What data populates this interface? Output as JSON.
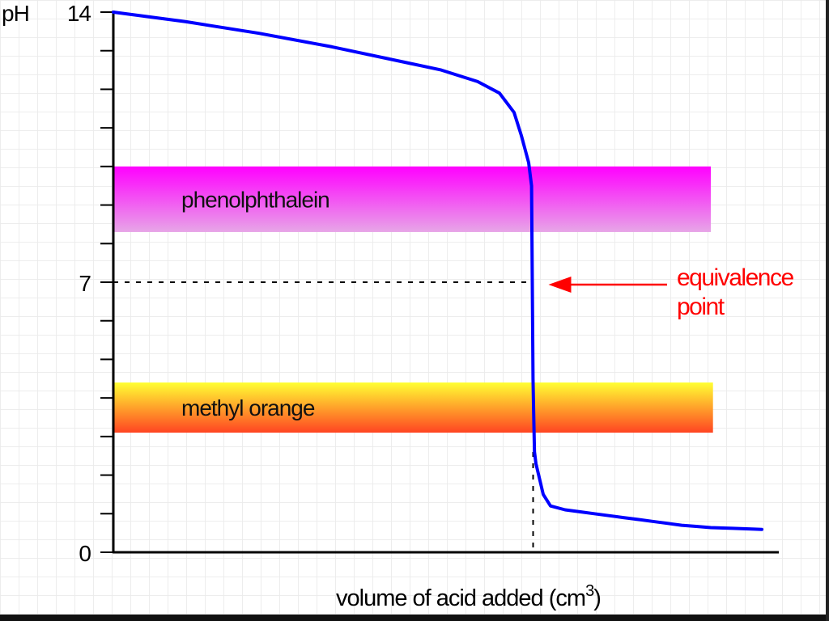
{
  "chart_data": {
    "type": "line",
    "ylabel": "pH",
    "xlabel": "volume of acid added (cm",
    "xlabel_sup": "3",
    "xlabel_close": ")",
    "ylim": [
      0,
      14
    ],
    "y_ticks": [
      0,
      7,
      14
    ],
    "y_minor_ticks": [
      1,
      2,
      3,
      4,
      5,
      6,
      8,
      9,
      10,
      11,
      12,
      13
    ],
    "xlim": [
      0,
      100
    ],
    "grid": true,
    "series": [
      {
        "color": "#0000ff",
        "x": [
          0,
          10,
          20,
          30,
          40,
          45,
          50,
          53,
          55,
          56,
          57,
          57.4,
          57.5,
          57.6,
          57.7,
          57.8,
          58,
          58.5,
          59,
          60,
          62,
          64,
          66,
          68,
          70,
          72,
          74,
          76,
          78,
          80,
          82,
          85,
          88,
          89
        ],
        "y": [
          14,
          13.75,
          13.45,
          13.1,
          12.7,
          12.5,
          12.2,
          11.9,
          11.4,
          10.8,
          10.1,
          9.5,
          7,
          4.5,
          3.5,
          2.6,
          2.3,
          1.9,
          1.5,
          1.2,
          1.1,
          1.05,
          1.0,
          0.95,
          0.9,
          0.85,
          0.8,
          0.75,
          0.7,
          0.67,
          0.64,
          0.62,
          0.6,
          0.59
        ]
      }
    ],
    "bands": [
      {
        "label": "phenolphthalein",
        "y_min": 8.3,
        "y_max": 10.0,
        "x_min": 0,
        "x_max": 82,
        "colors": [
          "#ff00ff",
          "#e7a6e7"
        ]
      },
      {
        "label": "methyl orange",
        "y_min": 3.1,
        "y_max": 4.4,
        "x_min": 0,
        "x_max": 82.3,
        "colors": [
          "#ffff33",
          "#ff4422"
        ]
      }
    ],
    "equivalence": {
      "x": 57.5,
      "y": 7
    },
    "annotation": {
      "line1": "equivalence",
      "line2": "point",
      "color": "#ff0000"
    }
  }
}
